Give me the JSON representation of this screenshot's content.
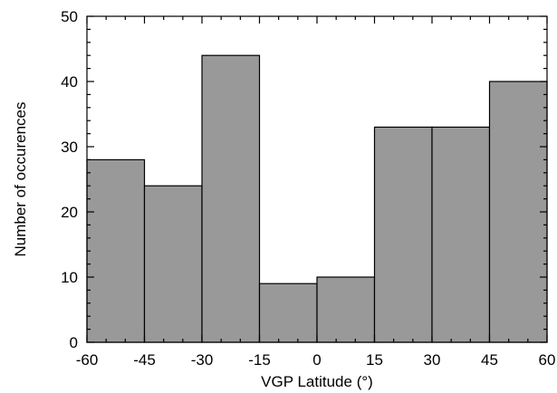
{
  "chart_data": {
    "type": "bar",
    "bins": [
      {
        "x0": -60,
        "x1": -45,
        "value": 28
      },
      {
        "x0": -45,
        "x1": -30,
        "value": 24
      },
      {
        "x0": -30,
        "x1": -15,
        "value": 44
      },
      {
        "x0": -15,
        "x1": 0,
        "value": 9
      },
      {
        "x0": 0,
        "x1": 15,
        "value": 10
      },
      {
        "x0": 15,
        "x1": 30,
        "value": 33
      },
      {
        "x0": 30,
        "x1": 45,
        "value": 33
      },
      {
        "x0": 45,
        "x1": 60,
        "value": 40
      }
    ],
    "xlabel": "VGP Latitude (°)",
    "ylabel": "Number of occurences",
    "xlim": [
      -60,
      60
    ],
    "ylim": [
      0,
      50
    ],
    "xticks": [
      -60,
      -45,
      -30,
      -15,
      0,
      15,
      30,
      45,
      60
    ],
    "yticks": [
      0,
      10,
      20,
      30,
      40,
      50
    ],
    "grid": false,
    "bar_color": "#999999",
    "edge_color": "#000000"
  }
}
